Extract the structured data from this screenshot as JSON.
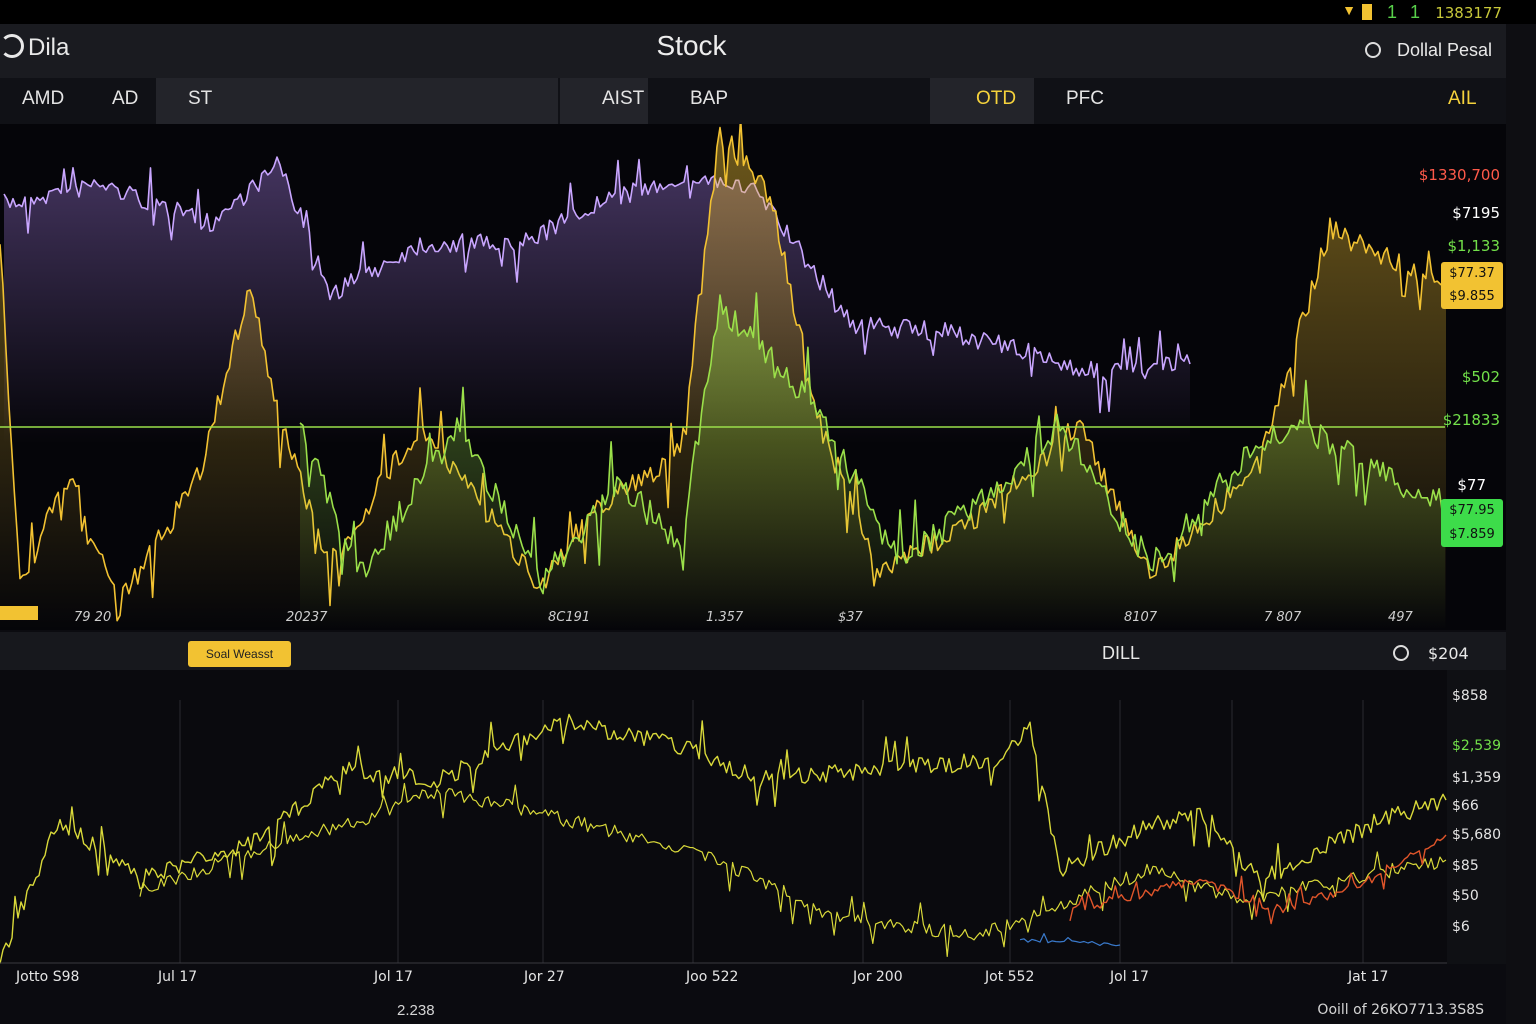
{
  "status_bar": {
    "signal": "1 1",
    "time": "1383177",
    "icons": [
      "wifi-icon",
      "battery-icon",
      "signal-icon"
    ]
  },
  "header": {
    "brand": "Dila",
    "title": "Stock",
    "account": "Dollal Pesal"
  },
  "tabs": [
    {
      "label": "AMD",
      "active": false
    },
    {
      "label": "AD",
      "active": false
    },
    {
      "label": "ST",
      "active": true
    },
    {
      "label": "AIST",
      "active": true
    },
    {
      "label": "BAP",
      "active": false
    },
    {
      "label": "OTD",
      "active": true,
      "color": "#f5d23c"
    },
    {
      "label": "PFC",
      "active": false
    },
    {
      "label": "AIL",
      "active": false,
      "color": "#f5d23c"
    }
  ],
  "main_chart": {
    "price_labels": [
      {
        "text": "$1330,700",
        "color": "#ff5a4a"
      },
      {
        "text": "$7195",
        "color": "#ffffff"
      },
      {
        "text": "$1,133",
        "color": "#72e04a"
      },
      {
        "text": "$502",
        "color": "#72e04a"
      },
      {
        "text": "$21833",
        "color": "#72e04a"
      },
      {
        "text": "$77",
        "color": "#ffffff"
      }
    ],
    "price_boxes": [
      {
        "text": "$77.37",
        "color": "#f2c232"
      },
      {
        "text": "$9.855",
        "color": "#f2c232"
      },
      {
        "text": "$77.95",
        "color": "#3ddc4a"
      },
      {
        "text": "$7.859",
        "color": "#3ddc4a"
      }
    ],
    "x_ticks": [
      "79  20",
      "20237",
      "8C191",
      "1.357",
      "$37",
      "8107",
      "7 807",
      "497"
    ],
    "colors": {
      "purple": "#c9a6ff",
      "yellow": "#f2c232",
      "green": "#9be04a",
      "level": "#9be04a"
    }
  },
  "lower_panel": {
    "legend_chip": "Soal Weasst",
    "title": "DILL",
    "value": "$204",
    "y_labels": [
      {
        "text": "$858",
        "color": "#e5e5e5"
      },
      {
        "text": "$2,539",
        "color": "#72e04a"
      },
      {
        "text": "$1,359",
        "color": "#e5e5e5"
      },
      {
        "text": "$66",
        "color": "#e5e5e5"
      },
      {
        "text": "$5,680",
        "color": "#e5e5e5"
      },
      {
        "text": "$85",
        "color": "#e5e5e5"
      },
      {
        "text": "$50",
        "color": "#e5e5e5"
      },
      {
        "text": "$6",
        "color": "#e5e5e5"
      }
    ],
    "x_labels": [
      "Jotto S98",
      "Jul 17",
      "Jol 17",
      "Jor 27",
      "Joo 522",
      "Jor 200",
      "Jot 552",
      "Jol 17",
      "Jat 17"
    ],
    "colors": {
      "yellow": "#d9d93a",
      "orange": "#e0552a",
      "blue": "#3a7acc"
    }
  },
  "footer": {
    "left": "2.238",
    "right": "Ooill of 26KO7713.3S8S"
  }
}
